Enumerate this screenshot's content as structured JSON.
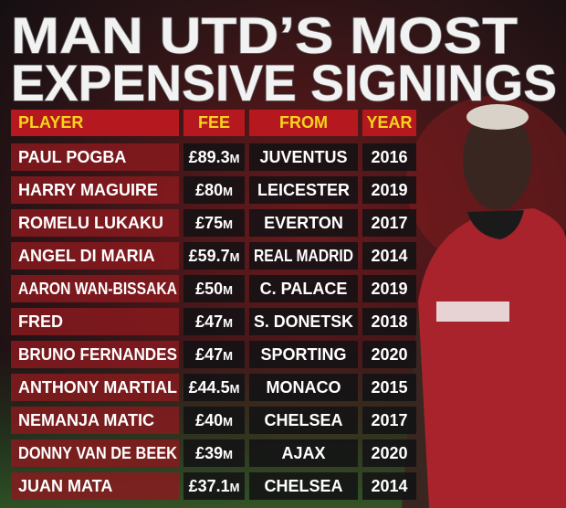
{
  "header": {
    "title": [
      "MAN UTD’S MOST",
      "EXPENSIVE SIGNINGS"
    ]
  },
  "table": {
    "columns": [
      "PLAYER",
      "FEE",
      "FROM",
      "YEAR"
    ],
    "rows": [
      [
        "PAUL POGBA",
        "£89.3m",
        "JUVENTUS",
        "2016"
      ],
      [
        "HARRY MAGUIRE",
        "£80m",
        "LEICESTER",
        "2019"
      ],
      [
        "ROMELU LUKAKU",
        "£75m",
        "EVERTON",
        "2017"
      ],
      [
        "ANGEL DI MARIA",
        "£59.7m",
        "REAL MADRID",
        "2014"
      ],
      [
        "AARON WAN-BISSAKA",
        "£50m",
        "C. PALACE",
        "2019"
      ],
      [
        "FRED",
        "£47m",
        "S. DONETSK",
        "2018"
      ],
      [
        "BRUNO FERNANDES",
        "£47m",
        "SPORTING",
        "2020"
      ],
      [
        "ANTHONY MARTIAL",
        "£44.5m",
        "MONACO",
        "2015"
      ],
      [
        "NEMANJA MATIC",
        "£40m",
        "CHELSEA",
        "2017"
      ],
      [
        "DONNY VAN DE BEEK",
        "£39m",
        "AJAX",
        "2020"
      ],
      [
        "JUAN MATA",
        "£37.1m",
        "CHELSEA",
        "2014"
      ]
    ]
  }
}
